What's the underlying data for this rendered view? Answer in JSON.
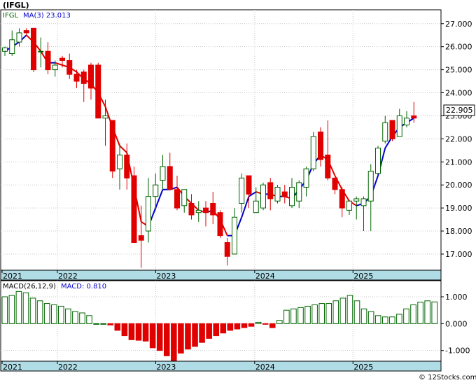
{
  "header": {
    "title": "(IFGL)",
    "legend_symbol": "IFGL",
    "legend_ma": "MA(3)  23.013",
    "last_price": "22.905"
  },
  "macd_header": {
    "label": "MACD(26,12,9)",
    "value": "MACD: 0.810"
  },
  "credit": "© 12Stocks.com",
  "colors": {
    "up": "#006400",
    "down": "#e00000",
    "ma_up": "#0000cc",
    "ma_down": "#e00000",
    "axis_bar": "#b0dce6",
    "macd_bar": "#006400"
  },
  "chart_data": [
    {
      "type": "candlestick",
      "interval": "monthly",
      "ylim": [
        16.3,
        27.6
      ],
      "y_ticks": [
        "17.000",
        "18.000",
        "19.000",
        "20.000",
        "21.000",
        "22.000",
        "23.000",
        "24.000",
        "25.000",
        "26.000",
        "27.000"
      ],
      "x_labels": [
        "2021",
        "2022",
        "2023",
        "2024",
        "2025"
      ],
      "series": [
        {
          "name": "IFGL",
          "ohlc": [
            [
              25.8,
              26.0,
              25.6,
              25.95
            ],
            [
              25.7,
              26.7,
              25.6,
              26.3
            ],
            [
              26.2,
              26.8,
              26.0,
              26.6
            ],
            [
              26.7,
              26.8,
              26.5,
              26.6
            ],
            [
              26.8,
              26.8,
              24.9,
              25.0
            ],
            [
              25.8,
              26.4,
              25.1,
              25.8
            ],
            [
              25.8,
              26.2,
              24.8,
              25.0
            ],
            [
              25.0,
              25.4,
              24.7,
              25.2
            ],
            [
              25.5,
              25.6,
              25.1,
              25.4
            ],
            [
              25.4,
              25.7,
              24.6,
              24.8
            ],
            [
              24.8,
              25.0,
              24.2,
              24.5
            ],
            [
              24.9,
              25.0,
              23.6,
              24.4
            ],
            [
              25.2,
              25.3,
              23.7,
              24.2
            ],
            [
              25.2,
              25.3,
              22.9,
              22.9
            ],
            [
              22.9,
              23.7,
              21.7,
              23.0
            ],
            [
              22.8,
              22.8,
              20.3,
              20.6
            ],
            [
              20.7,
              21.8,
              19.8,
              21.3
            ],
            [
              21.3,
              21.8,
              19.8,
              20.3
            ],
            [
              20.4,
              20.8,
              17.6,
              17.5
            ],
            [
              17.8,
              19.1,
              16.4,
              17.6
            ],
            [
              18.0,
              20.3,
              17.5,
              19.5
            ],
            [
              19.5,
              20.5,
              18.9,
              20.0
            ],
            [
              20.2,
              21.3,
              19.8,
              20.8
            ],
            [
              20.8,
              21.4,
              19.8,
              19.8
            ],
            [
              19.8,
              20.4,
              18.9,
              19.0
            ],
            [
              19.1,
              19.8,
              18.8,
              19.8
            ],
            [
              19.2,
              19.6,
              18.5,
              18.7
            ],
            [
              18.8,
              19.3,
              18.4,
              18.9
            ],
            [
              19.0,
              19.3,
              18.2,
              18.8
            ],
            [
              19.2,
              19.7,
              18.3,
              18.7
            ],
            [
              18.8,
              18.9,
              17.7,
              17.8
            ],
            [
              17.5,
              17.7,
              16.5,
              16.9
            ],
            [
              17.0,
              19.0,
              17.0,
              18.6
            ],
            [
              19.2,
              20.5,
              18.8,
              20.3
            ],
            [
              20.4,
              20.4,
              19.0,
              19.6
            ],
            [
              18.8,
              19.9,
              18.8,
              19.3
            ],
            [
              19.0,
              20.1,
              18.9,
              20.0
            ],
            [
              20.1,
              20.3,
              18.9,
              19.4
            ],
            [
              19.3,
              20.0,
              19.2,
              19.9
            ],
            [
              19.7,
              20.0,
              19.2,
              19.5
            ],
            [
              19.1,
              20.3,
              19.0,
              19.9
            ],
            [
              19.3,
              20.2,
              19.0,
              20.1
            ],
            [
              19.9,
              20.8,
              19.5,
              20.7
            ],
            [
              20.7,
              22.3,
              20.6,
              22.1
            ],
            [
              22.3,
              22.5,
              20.8,
              21.1
            ],
            [
              21.3,
              22.8,
              20.2,
              20.3
            ],
            [
              20.3,
              20.3,
              19.6,
              19.8
            ],
            [
              19.8,
              19.9,
              18.6,
              19.0
            ],
            [
              18.9,
              19.3,
              18.7,
              19.3
            ],
            [
              19.3,
              19.5,
              18.5,
              19.4
            ],
            [
              19.1,
              19.5,
              18.0,
              19.4
            ],
            [
              19.3,
              20.9,
              18.0,
              20.6
            ],
            [
              20.5,
              21.7,
              20.5,
              21.6
            ],
            [
              21.9,
              23.0,
              21.8,
              22.7
            ],
            [
              22.8,
              22.8,
              21.9,
              22.0
            ],
            [
              22.1,
              23.3,
              22.1,
              23.0
            ],
            [
              22.6,
              23.2,
              22.5,
              22.9
            ],
            [
              23.0,
              23.6,
              22.7,
              22.9
            ]
          ],
          "ma": [
            25.8,
            26.0,
            26.2,
            26.5,
            26.2,
            25.8,
            25.3,
            25.3,
            25.2,
            25.1,
            24.9,
            24.6,
            24.4,
            24.0,
            23.4,
            22.5,
            21.7,
            21.4,
            19.9,
            18.4,
            18.2,
            19.0,
            19.8,
            19.8,
            19.9,
            19.5,
            19.2,
            18.9,
            18.8,
            18.9,
            18.5,
            17.8,
            17.8,
            18.6,
            19.5,
            19.7,
            19.6,
            19.6,
            19.5,
            19.5,
            19.4,
            19.8,
            20.2,
            20.9,
            21.3,
            21.1,
            20.4,
            19.8,
            19.3,
            19.1,
            19.2,
            19.5,
            20.4,
            21.6,
            22.1,
            22.5,
            22.7,
            22.9
          ],
          "last": 22.905,
          "ma_last": 23.013
        }
      ]
    },
    {
      "type": "bar",
      "name": "MACD(26,12,9)",
      "ylim": [
        -1.4,
        1.6
      ],
      "y_ticks": [
        "1.000",
        "0.000",
        "-1.000"
      ],
      "x_labels": [
        "2021",
        "2022",
        "2023",
        "2024",
        "2025"
      ],
      "values": [
        1.0,
        1.05,
        1.2,
        1.15,
        0.95,
        0.85,
        0.75,
        0.7,
        0.65,
        0.55,
        0.45,
        0.4,
        0.3,
        0.0,
        0.0,
        -0.05,
        -0.25,
        -0.45,
        -0.6,
        -0.62,
        -0.65,
        -0.9,
        -1.0,
        -1.2,
        -1.4,
        -1.1,
        -0.95,
        -0.85,
        -0.7,
        -0.55,
        -0.45,
        -0.35,
        -0.25,
        -0.2,
        -0.15,
        -0.1,
        0.05,
        -0.02,
        -0.15,
        0.12,
        0.5,
        0.55,
        0.6,
        0.65,
        0.7,
        0.75,
        0.75,
        0.85,
        0.95,
        1.05,
        0.85,
        0.55,
        0.45,
        0.3,
        0.25,
        0.25,
        0.35,
        0.55,
        0.7,
        0.8,
        0.85,
        0.81
      ]
    }
  ]
}
